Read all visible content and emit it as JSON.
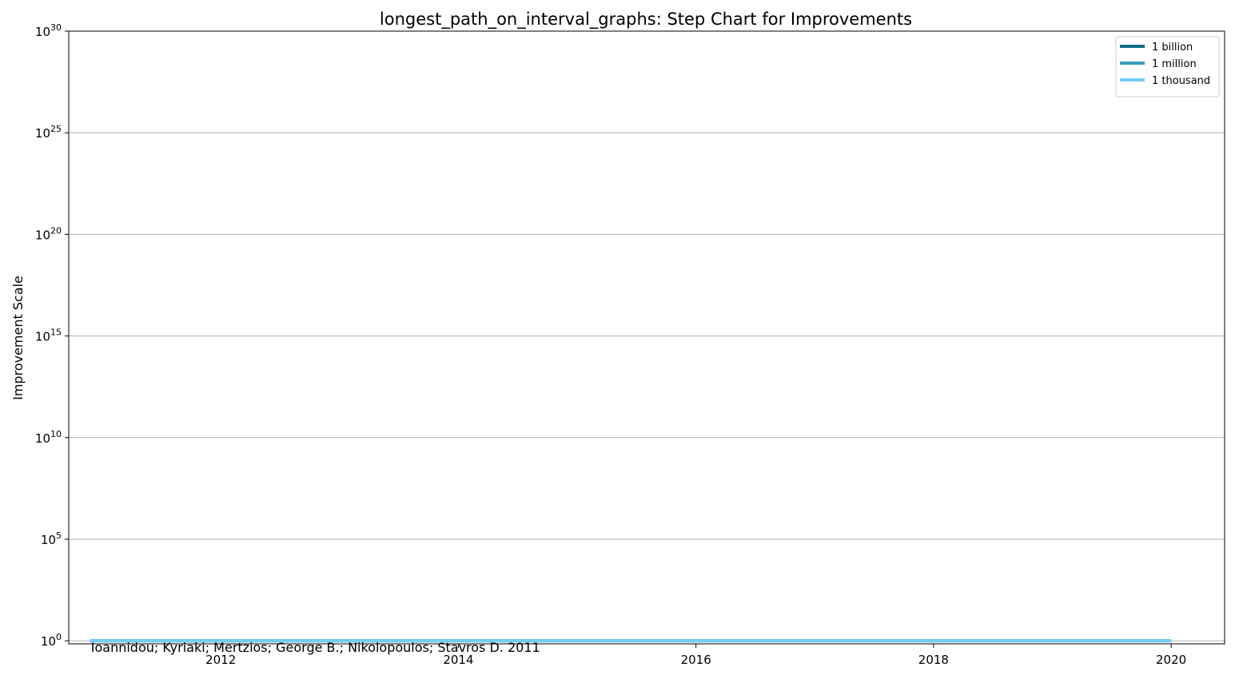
{
  "chart_data": {
    "type": "line",
    "step": true,
    "title": "longest_path_on_interval_graphs: Step Chart for Improvements",
    "xlabel": "",
    "ylabel": "Improvement Scale",
    "xlim": [
      2010.72,
      2020.45
    ],
    "x_ticks": [
      2012,
      2014,
      2016,
      2018,
      2020
    ],
    "x_tick_labels": [
      "2012",
      "2014",
      "2016",
      "2018",
      "2020"
    ],
    "y_scale": "log",
    "ylim_exponent": [
      -0.15,
      30
    ],
    "y_tick_exponents": [
      0,
      5,
      10,
      15,
      20,
      25,
      30
    ],
    "y_tick_base": "10",
    "grid": "y",
    "legend_position": "top-right",
    "series": [
      {
        "name": "1 billion",
        "color": "#136d8a",
        "x": [
          2010.9,
          2020.0
        ],
        "y": [
          1,
          1
        ]
      },
      {
        "name": "1 million",
        "color": "#3a9bb8",
        "x": [
          2010.9,
          2020.0
        ],
        "y": [
          1,
          1
        ]
      },
      {
        "name": "1 thousand",
        "color": "#74cdf5",
        "x": [
          2010.9,
          2020.0
        ],
        "y": [
          1,
          1
        ]
      }
    ],
    "annotations": [
      {
        "text": "Ioannidou; Kyriaki; Mertzios; George B.; Nikolopoulos; Stavros D. 2011",
        "x": 2010.9,
        "y": 1
      }
    ]
  }
}
